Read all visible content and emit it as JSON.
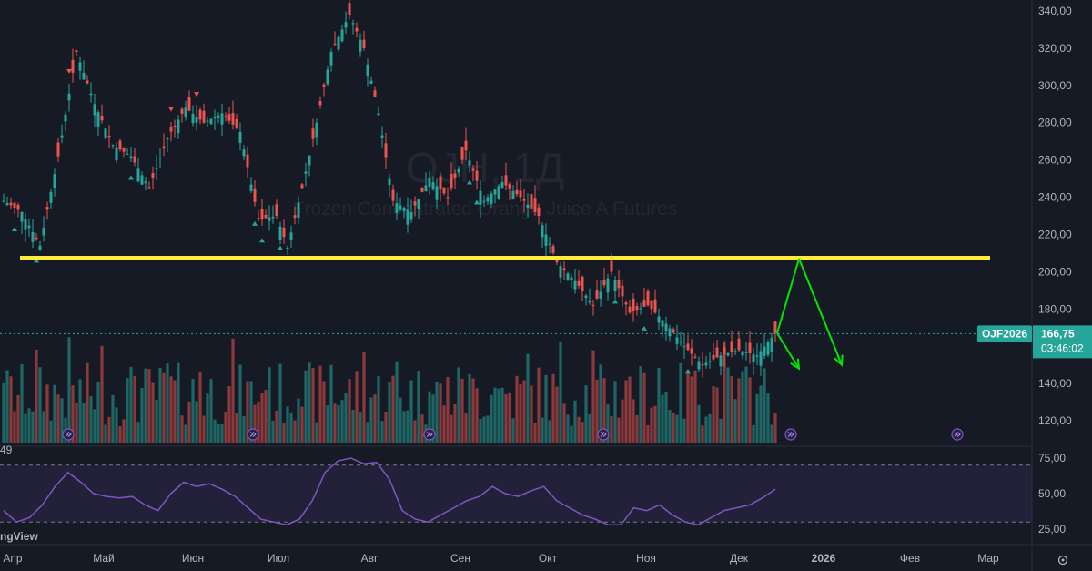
{
  "chart_data": [
    {
      "type": "candlestick",
      "symbol_watermark": "OJH, 1Д",
      "subtitle_watermark": "Frozen Concentrated Orange Juice A Futures",
      "ylim": [
        110,
        345
      ],
      "y_ticks": [
        {
          "value": 120,
          "label": "120,00"
        },
        {
          "value": 140,
          "label": "140,00"
        },
        {
          "value": 160,
          "label": "160,00"
        },
        {
          "value": 180,
          "label": "180,00"
        },
        {
          "value": 200,
          "label": "200,00"
        },
        {
          "value": 220,
          "label": "220,00"
        },
        {
          "value": 240,
          "label": "240,00"
        },
        {
          "value": 260,
          "label": "260,00"
        },
        {
          "value": 280,
          "label": "280,00"
        },
        {
          "value": 300,
          "label": "300,00"
        },
        {
          "value": 320,
          "label": "320,00"
        },
        {
          "value": 340,
          "label": "340,00"
        }
      ],
      "x_ticks": [
        "Апр",
        "Май",
        "Июн",
        "Июл",
        "Авг",
        "Сен",
        "Окт",
        "Ноя",
        "Дек",
        "2026",
        "Фев",
        "Мар"
      ],
      "price_path": [
        [
          0,
          238
        ],
        [
          5,
          232
        ],
        [
          10,
          214
        ],
        [
          15,
          262
        ],
        [
          20,
          318
        ],
        [
          25,
          290
        ],
        [
          30,
          268
        ],
        [
          35,
          262
        ],
        [
          40,
          245
        ],
        [
          45,
          272
        ],
        [
          50,
          288
        ],
        [
          55,
          280
        ],
        [
          60,
          285
        ],
        [
          65,
          275
        ],
        [
          70,
          228
        ],
        [
          75,
          230
        ],
        [
          78,
          213
        ],
        [
          82,
          245
        ],
        [
          86,
          280
        ],
        [
          90,
          318
        ],
        [
          95,
          338
        ],
        [
          99,
          320
        ],
        [
          103,
          285
        ],
        [
          107,
          238
        ],
        [
          112,
          232
        ],
        [
          117,
          250
        ],
        [
          122,
          240
        ],
        [
          127,
          265
        ],
        [
          132,
          238
        ],
        [
          137,
          248
        ],
        [
          142,
          240
        ],
        [
          147,
          230
        ],
        [
          152,
          205
        ],
        [
          157,
          195
        ],
        [
          162,
          182
        ],
        [
          167,
          200
        ],
        [
          172,
          178
        ],
        [
          177,
          182
        ],
        [
          182,
          172
        ],
        [
          187,
          160
        ],
        [
          192,
          150
        ],
        [
          197,
          155
        ],
        [
          202,
          158
        ],
        [
          207,
          155
        ],
        [
          212,
          167
        ]
      ],
      "last_price": {
        "symbol": "OJF2026",
        "value": "166,75",
        "countdown": "03:46:02"
      },
      "support_level": 207.5,
      "projection": [
        {
          "from": [
            212,
            167
          ],
          "to": [
            218,
            207
          ]
        },
        {
          "from": [
            218,
            207
          ],
          "to": [
            229,
            150
          ]
        },
        {
          "from": [
            212,
            167
          ],
          "to": [
            218,
            148
          ]
        }
      ],
      "colors": {
        "up": "#26a69a",
        "down": "#ef5350",
        "support": "#ffeb3b",
        "projection": "#00e600"
      }
    },
    {
      "type": "line",
      "indicator": "RSI",
      "ylim": [
        20,
        80
      ],
      "y_ticks": [
        {
          "value": 75,
          "label": "75,00"
        },
        {
          "value": 50,
          "label": "50,00"
        },
        {
          "value": 25,
          "label": "25,00"
        }
      ],
      "band": [
        30,
        70
      ],
      "values": [
        38,
        30,
        33,
        42,
        55,
        65,
        58,
        50,
        48,
        47,
        48,
        42,
        38,
        50,
        58,
        55,
        57,
        53,
        48,
        40,
        32,
        30,
        28,
        32,
        45,
        65,
        73,
        75,
        71,
        72,
        60,
        38,
        32,
        30,
        35,
        40,
        45,
        48,
        55,
        50,
        48,
        52,
        55,
        45,
        40,
        35,
        32,
        28,
        28,
        40,
        38,
        42,
        35,
        30,
        28,
        33,
        38,
        40,
        42,
        47,
        53
      ],
      "color": "#7e57c2"
    }
  ],
  "branding": {
    "label": "ngView"
  },
  "top_left_label": "49"
}
